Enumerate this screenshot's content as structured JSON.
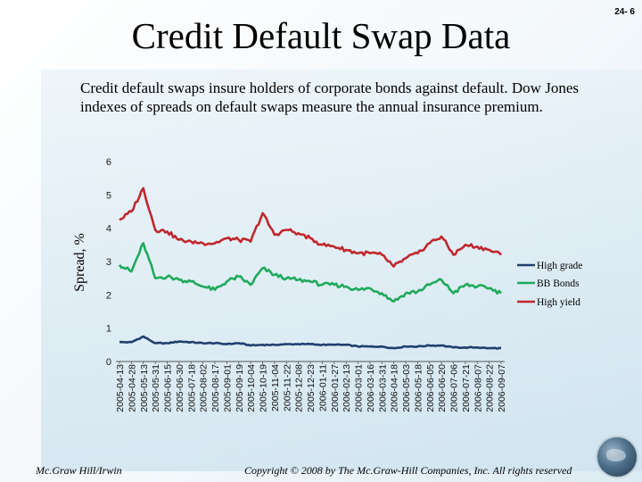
{
  "slide": {
    "title": "Credit Default Swap Data",
    "number": "24- 6",
    "intro": "Credit default swaps insure holders of corporate bonds against default. Dow Jones indexes of spreads on default swaps measure the annual insurance premium.",
    "footer_left": "Mc.Graw Hill/Irwin",
    "footer_center": "Copyright © 2008 by The Mc.Graw-Hill Companies, Inc. All rights reserved"
  },
  "colors": {
    "high_grade": "#1f3f6e",
    "bb_bonds": "#1faa5b",
    "high_yield": "#c0272d"
  },
  "chart_data": {
    "type": "line",
    "title": "",
    "xlabel": "",
    "ylabel": "Spread, %",
    "ylim": [
      0,
      6
    ],
    "yticks": [
      0,
      1,
      2,
      3,
      4,
      5,
      6
    ],
    "legend_position": "right",
    "categories": [
      "2005-04-13",
      "2005-04-28",
      "2005-05-13",
      "2005-05-31",
      "2005-06-15",
      "2005-06-30",
      "2005-07-18",
      "2005-08-02",
      "2005-08-17",
      "2005-09-01",
      "2005-09-19",
      "2005-10-04",
      "2005-10-19",
      "2005-11-04",
      "2005-11-22",
      "2005-12-08",
      "2005-12-23",
      "2006-01-11",
      "2006-01-27",
      "2006-02-13",
      "2006-03-01",
      "2006-03-16",
      "2006-03-31",
      "2006-04-18",
      "2006-05-03",
      "2006-05-18",
      "2006-06-05",
      "2006-06-20",
      "2006-07-06",
      "2006-07-21",
      "2006-08-07",
      "2006-08-22",
      "2006-09-07"
    ],
    "series": [
      {
        "name": "High grade",
        "values": [
          0.58,
          0.58,
          0.75,
          0.55,
          0.55,
          0.6,
          0.58,
          0.55,
          0.55,
          0.52,
          0.55,
          0.48,
          0.5,
          0.5,
          0.52,
          0.52,
          0.52,
          0.5,
          0.5,
          0.5,
          0.45,
          0.45,
          0.45,
          0.4,
          0.45,
          0.45,
          0.48,
          0.48,
          0.42,
          0.42,
          0.42,
          0.4,
          0.4
        ]
      },
      {
        "name": "BB Bonds",
        "values": [
          2.9,
          2.7,
          3.55,
          2.5,
          2.55,
          2.45,
          2.4,
          2.25,
          2.15,
          2.4,
          2.55,
          2.3,
          2.8,
          2.6,
          2.5,
          2.45,
          2.4,
          2.3,
          2.3,
          2.25,
          2.15,
          2.2,
          2.05,
          1.8,
          2.05,
          2.1,
          2.3,
          2.45,
          2.05,
          2.3,
          2.25,
          2.2,
          2.05
        ]
      },
      {
        "name": "High yield",
        "values": [
          4.25,
          4.5,
          5.2,
          3.95,
          3.9,
          3.65,
          3.6,
          3.55,
          3.55,
          3.7,
          3.65,
          3.6,
          4.45,
          3.8,
          3.95,
          3.85,
          3.7,
          3.5,
          3.45,
          3.35,
          3.25,
          3.25,
          3.2,
          2.85,
          3.1,
          3.25,
          3.55,
          3.75,
          3.2,
          3.5,
          3.45,
          3.35,
          3.2
        ]
      }
    ]
  }
}
